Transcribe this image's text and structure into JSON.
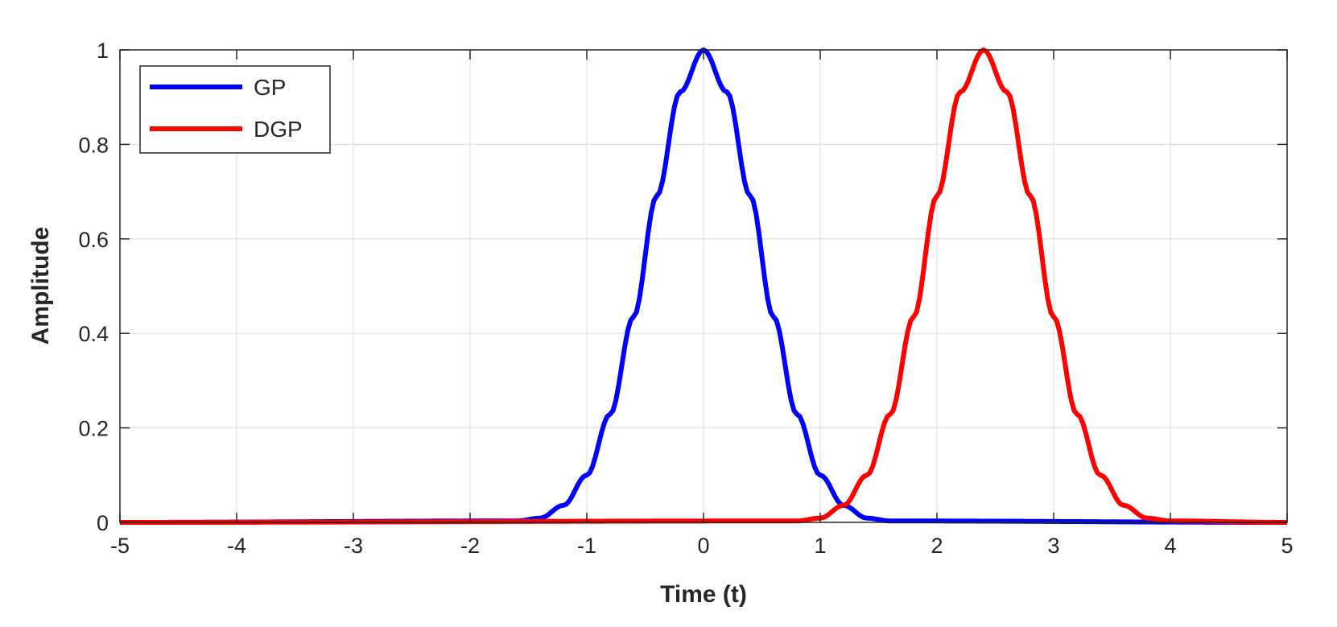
{
  "chart_data": {
    "type": "line",
    "title": "",
    "xlabel": "Time (t)",
    "ylabel": "Amplitude",
    "xlim": [
      -5,
      5
    ],
    "ylim": [
      0,
      1
    ],
    "xticks": [
      "-5",
      "-4",
      "-3",
      "-2",
      "-1",
      "0",
      "1",
      "2",
      "3",
      "4",
      "5"
    ],
    "yticks": [
      "0",
      "0.2",
      "0.4",
      "0.6",
      "0.8",
      "1"
    ],
    "grid": true,
    "legend_location": "top-left",
    "series": [
      {
        "name": "GP",
        "color": "#0000ff",
        "x": [
          -5,
          -1.6,
          -1.4,
          -1.2,
          -1.0,
          -0.8,
          -0.6,
          -0.4,
          -0.2,
          0,
          0.2,
          0.4,
          0.6,
          0.8,
          1.0,
          1.2,
          1.4,
          1.6,
          5
        ],
        "y": [
          0,
          0.003,
          0.009,
          0.036,
          0.1,
          0.229,
          0.435,
          0.691,
          0.911,
          1.0,
          0.911,
          0.691,
          0.435,
          0.229,
          0.1,
          0.036,
          0.009,
          0.003,
          0
        ]
      },
      {
        "name": "DGP",
        "color": "#ff0000",
        "x": [
          -5,
          0.8,
          1.0,
          1.2,
          1.4,
          1.6,
          1.8,
          2.0,
          2.2,
          2.4,
          2.6,
          2.8,
          3.0,
          3.2,
          3.4,
          3.6,
          3.8,
          4.0,
          5
        ],
        "y": [
          0,
          0.003,
          0.009,
          0.036,
          0.1,
          0.229,
          0.435,
          0.691,
          0.911,
          1.0,
          0.911,
          0.691,
          0.435,
          0.229,
          0.1,
          0.036,
          0.009,
          0.003,
          0
        ]
      }
    ]
  }
}
